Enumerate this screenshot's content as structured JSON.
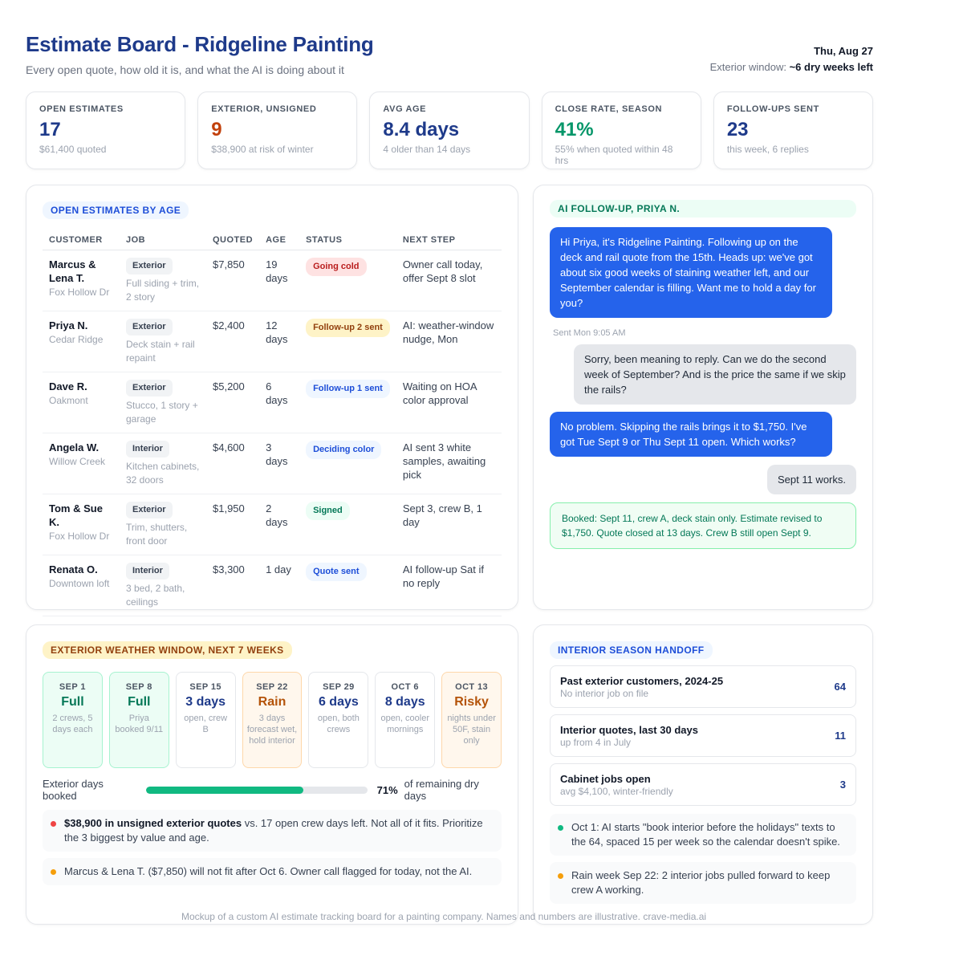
{
  "header": {
    "title": "Estimate Board - Ridgeline Painting",
    "subtitle": "Every open quote, how old it is, and what the AI is doing about it",
    "date": "Thu, Aug 27",
    "window_label": "Exterior window:",
    "window_value": "~6 dry weeks left"
  },
  "kpis": [
    {
      "label": "OPEN ESTIMATES",
      "value": "17",
      "note": "$61,400 quoted",
      "color": "#1e3a8a"
    },
    {
      "label": "EXTERIOR, UNSIGNED",
      "value": "9",
      "note": "$38,900 at risk of winter",
      "color": "#c2410c"
    },
    {
      "label": "AVG AGE",
      "value": "8.4 days",
      "note": "4 older than 14 days",
      "color": "#1e3a8a"
    },
    {
      "label": "CLOSE RATE, SEASON",
      "value": "41%",
      "note": "55% when quoted within 48 hrs",
      "color": "#059669"
    },
    {
      "label": "FOLLOW-UPS SENT",
      "value": "23",
      "note": "this week, 6 replies",
      "color": "#1e3a8a"
    }
  ],
  "estimates": {
    "title": "OPEN ESTIMATES BY AGE",
    "columns": [
      "CUSTOMER",
      "JOB",
      "QUOTED",
      "AGE",
      "STATUS",
      "NEXT STEP"
    ],
    "rows": [
      {
        "customer": "Marcus & Lena T.",
        "location": "Fox Hollow Dr",
        "job_type": "Exterior",
        "job_desc": "Full siding + trim, 2 story",
        "quoted": "$7,850",
        "age": "19 days",
        "status": "Going cold",
        "status_bg": "#fee2e2",
        "status_fg": "#b91c1c",
        "next": "Owner call today, offer Sept 8 slot"
      },
      {
        "customer": "Priya N.",
        "location": "Cedar Ridge",
        "job_type": "Exterior",
        "job_desc": "Deck stain + rail repaint",
        "quoted": "$2,400",
        "age": "12 days",
        "status": "Follow-up 2 sent",
        "status_bg": "#fef3c7",
        "status_fg": "#92400e",
        "next": "AI: weather-window nudge, Mon"
      },
      {
        "customer": "Dave R.",
        "location": "Oakmont",
        "job_type": "Exterior",
        "job_desc": "Stucco, 1 story + garage",
        "quoted": "$5,200",
        "age": "6 days",
        "status": "Follow-up 1 sent",
        "status_bg": "#eff6ff",
        "status_fg": "#1d4ed8",
        "next": "Waiting on HOA color approval"
      },
      {
        "customer": "Angela W.",
        "location": "Willow Creek",
        "job_type": "Interior",
        "job_desc": "Kitchen cabinets, 32 doors",
        "quoted": "$4,600",
        "age": "3 days",
        "status": "Deciding color",
        "status_bg": "#eff6ff",
        "status_fg": "#1d4ed8",
        "next": "AI sent 3 white samples, awaiting pick"
      },
      {
        "customer": "Tom & Sue K.",
        "location": "Fox Hollow Dr",
        "job_type": "Exterior",
        "job_desc": "Trim, shutters, front door",
        "quoted": "$1,950",
        "age": "2 days",
        "status": "Signed",
        "status_bg": "#ecfdf5",
        "status_fg": "#047857",
        "next": "Sept 3, crew B, 1 day"
      },
      {
        "customer": "Renata O.",
        "location": "Downtown loft",
        "job_type": "Interior",
        "job_desc": "3 bed, 2 bath, ceilings",
        "quoted": "$3,300",
        "age": "1 day",
        "status": "Quote sent",
        "status_bg": "#eff6ff",
        "status_fg": "#1d4ed8",
        "next": "AI follow-up Sat if no reply"
      }
    ]
  },
  "chat": {
    "title": "AI FOLLOW-UP, PRIYA N.",
    "msg1": "Hi Priya, it's Ridgeline Painting. Following up on the deck and rail quote from the 15th. Heads up: we've got about six good weeks of staining weather left, and our September calendar is filling. Want me to hold a day for you?",
    "sent_time": "Sent Mon 9:05 AM",
    "msg2": "Sorry, been meaning to reply. Can we do the second week of September? And is the price the same if we skip the rails?",
    "msg3": "No problem. Skipping the rails brings it to $1,750. I've got Tue Sept 9 or Thu Sept 11 open. Which works?",
    "msg4": "Sept 11 works.",
    "booked": "Booked: Sept 11, crew A, deck stain only. Estimate revised to $1,750. Quote closed at 13 days. Crew B still open Sept 9."
  },
  "weather": {
    "title": "EXTERIOR WEATHER WINDOW, NEXT 7 WEEKS",
    "weeks": [
      {
        "date": "SEP 1",
        "status": "Full",
        "note": "2 crews, 5 days each",
        "fg": "#047857",
        "bg": "#ecfdf5",
        "border": "#a7f3d0"
      },
      {
        "date": "SEP 8",
        "status": "Full",
        "note": "Priya booked 9/11",
        "fg": "#047857",
        "bg": "#ecfdf5",
        "border": "#a7f3d0"
      },
      {
        "date": "SEP 15",
        "status": "3 days",
        "note": "open, crew B",
        "fg": "#1e3a8a",
        "bg": "#ffffff",
        "border": "#e5e7eb"
      },
      {
        "date": "SEP 22",
        "status": "Rain",
        "note": "3 days forecast wet, hold interior",
        "fg": "#b45309",
        "bg": "#fff7ed",
        "border": "#fed7aa"
      },
      {
        "date": "SEP 29",
        "status": "6 days",
        "note": "open, both crews",
        "fg": "#1e3a8a",
        "bg": "#ffffff",
        "border": "#e5e7eb"
      },
      {
        "date": "OCT 6",
        "status": "8 days",
        "note": "open, cooler mornings",
        "fg": "#1e3a8a",
        "bg": "#ffffff",
        "border": "#e5e7eb"
      },
      {
        "date": "OCT 13",
        "status": "Risky",
        "note": "nights under 50F, stain only",
        "fg": "#b45309",
        "bg": "#fff7ed",
        "border": "#fed7aa"
      }
    ],
    "bar_label": "Exterior days booked",
    "bar_pct": "71%",
    "bar_fraction": 0.71,
    "bar_suffix": "of remaining dry days",
    "alert1_bold": "$38,900 in unsigned exterior quotes",
    "alert1_rest": " vs. 17 open crew days left. Not all of it fits. Prioritize the 3 biggest by value and age.",
    "alert2": "Marcus & Lena T. ($7,850) will not fit after Oct 6. Owner call flagged for today, not the AI."
  },
  "interior": {
    "title": "INTERIOR SEASON HANDOFF",
    "rows": [
      {
        "title": "Past exterior customers, 2024-25",
        "sub": "No interior job on file",
        "count": "64"
      },
      {
        "title": "Interior quotes, last 30 days",
        "sub": "up from 4 in July",
        "count": "11"
      },
      {
        "title": "Cabinet jobs open",
        "sub": "avg $4,100, winter-friendly",
        "count": "3"
      }
    ],
    "note1": "Oct 1: AI starts \"book interior before the holidays\" texts to the 64, spaced 15 per week so the calendar doesn't spike.",
    "note2": "Rain week Sep 22: 2 interior jobs pulled forward to keep crew A working."
  },
  "footer": "Mockup of a custom AI estimate tracking board for a painting company. Names and numbers are illustrative. crave-media.ai",
  "colors": {
    "brand": "#1e3a8a",
    "accent": "#2563eb",
    "green": "#10b981",
    "amber": "#f59e0b",
    "red": "#ef4444"
  }
}
